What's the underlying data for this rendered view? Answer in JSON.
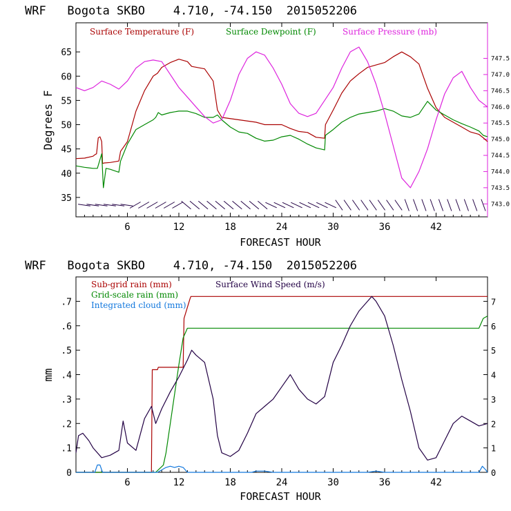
{
  "chart_data": [
    {
      "type": "line",
      "title": "WRF   Bogota SKBO    4.710, -74.150  2015052206",
      "xlabel": "FORECAST HOUR",
      "ylabel": "Degrees F",
      "xlim": [
        0,
        48
      ],
      "ylim": [
        31,
        71
      ],
      "y2lim": [
        742.6,
        748.6
      ],
      "xticks": [
        "6",
        "12",
        "18",
        "24",
        "30",
        "36",
        "42"
      ],
      "yticks": [
        "35",
        "40",
        "45",
        "50",
        "55",
        "60",
        "65"
      ],
      "y2ticks": [
        "743.0",
        "743.5",
        "744.0",
        "744.5",
        "745.0",
        "745.5",
        "746.0",
        "746.5",
        "747.0",
        "747.5"
      ],
      "legend": [
        "Surface Temperature (F)",
        "Surface Dewpoint (F)",
        "Surface Pressure (mb)"
      ],
      "series": [
        {
          "name": "Surface Temperature (F)",
          "color": "#aa0000",
          "axis": "left",
          "x": [
            0,
            1,
            2,
            2.2,
            2.4,
            2.6,
            2.8,
            3,
            3.1,
            3.3,
            4,
            5,
            5.2,
            6,
            7,
            8,
            9,
            9.5,
            10,
            11,
            12,
            13,
            13.5,
            15,
            16,
            16.5,
            17,
            19,
            21,
            22,
            24,
            25,
            26,
            27,
            28,
            29,
            29.1,
            30,
            31,
            32,
            33,
            34,
            35,
            36,
            37,
            38,
            39,
            40,
            41,
            42,
            43,
            44,
            45,
            46,
            47,
            47.5,
            48
          ],
          "values": [
            43,
            43.1,
            43.5,
            43.8,
            44,
            47.3,
            47.5,
            46.5,
            42,
            42.1,
            42.2,
            42.5,
            44.5,
            46.5,
            52.8,
            57,
            60,
            60.6,
            61.8,
            62.8,
            63.5,
            63,
            62,
            61.5,
            59,
            53,
            51.5,
            51,
            50.5,
            50,
            50,
            49.2,
            48.6,
            48.4,
            47.4,
            47.2,
            50,
            53,
            56.5,
            59,
            60.5,
            61.8,
            62.3,
            62.8,
            64,
            65,
            64,
            62.5,
            57.5,
            53.5,
            51.5,
            50.5,
            49.5,
            48.5,
            48,
            47.3,
            46.5
          ]
        },
        {
          "name": "Surface Dewpoint (F)",
          "color": "#008800",
          "axis": "left",
          "x": [
            0,
            1,
            2,
            2.5,
            3,
            3.2,
            3.5,
            4,
            5,
            5.2,
            6,
            7,
            8,
            9,
            9.3,
            9.6,
            10,
            11,
            12,
            13,
            14,
            15,
            16,
            16.5,
            17,
            18,
            19,
            20,
            21,
            22,
            23,
            24,
            25,
            26,
            27,
            28,
            29,
            29.1,
            30,
            31,
            32,
            33,
            34,
            35,
            36,
            37,
            38,
            39,
            40,
            41,
            42,
            43,
            44,
            45,
            46,
            47,
            47.5,
            48
          ],
          "values": [
            41.5,
            41.2,
            41,
            41,
            44,
            37,
            41,
            40.8,
            40.2,
            42.5,
            46,
            49,
            50,
            51,
            51.5,
            52.5,
            52,
            52.5,
            52.8,
            52.8,
            52.3,
            51.5,
            51.5,
            52,
            51,
            49.5,
            48.5,
            48.2,
            47.2,
            46.6,
            46.8,
            47.5,
            47.8,
            47,
            46,
            45.2,
            44.8,
            47.8,
            49,
            50.5,
            51.5,
            52.2,
            52.5,
            52.8,
            53.3,
            52.8,
            51.8,
            51.5,
            52.2,
            54.8,
            53,
            52,
            51,
            50.2,
            49.5,
            48.7,
            47.8,
            47.5
          ]
        },
        {
          "name": "Surface Pressure (mb)",
          "color": "#dd22dd",
          "axis": "right",
          "x": [
            0,
            1,
            2,
            3,
            4,
            5,
            6,
            7,
            8,
            9,
            10,
            11,
            12,
            13,
            14,
            15,
            16,
            17,
            18,
            19,
            20,
            21,
            22,
            23,
            24,
            25,
            26,
            27,
            28,
            29,
            30,
            31,
            32,
            33,
            34,
            35,
            36,
            37,
            38,
            39,
            40,
            41,
            42,
            43,
            44,
            45,
            46,
            47,
            48
          ],
          "values": [
            746.6,
            746.5,
            746.6,
            746.8,
            746.7,
            746.55,
            746.8,
            747.2,
            747.4,
            747.45,
            747.4,
            747.0,
            746.6,
            746.3,
            746.0,
            745.7,
            745.5,
            745.6,
            746.2,
            747.0,
            747.5,
            747.7,
            747.6,
            747.2,
            746.7,
            746.1,
            745.8,
            745.7,
            745.8,
            746.2,
            746.6,
            747.2,
            747.7,
            747.85,
            747.4,
            746.7,
            745.8,
            744.8,
            743.8,
            743.5,
            744.0,
            744.7,
            745.6,
            746.4,
            746.9,
            747.1,
            746.6,
            746.2,
            746.0
          ]
        }
      ],
      "wind_barbs": "wind barbs along bottom of panel"
    },
    {
      "type": "line",
      "title": "WRF   Bogota SKBO    4.710, -74.150  2015052206",
      "xlabel": "FORECAST HOUR",
      "ylabel": "mm",
      "xlim": [
        0,
        48
      ],
      "ylim": [
        0,
        0.8
      ],
      "y2lim": [
        0,
        8
      ],
      "xticks": [
        "6",
        "12",
        "18",
        "24",
        "30",
        "36",
        "42"
      ],
      "yticks": [
        "0",
        ".1",
        ".2",
        ".3",
        ".4",
        ".5",
        ".6",
        ".7"
      ],
      "y2ticks": [
        "0",
        "1",
        "2",
        "3",
        "4",
        "5",
        "6",
        "7"
      ],
      "legend": [
        "Sub-grid rain (mm)",
        "Grid-scale rain (mm)",
        "Integrated cloud (mm)",
        "Surface Wind Speed (m/s)"
      ],
      "series": [
        {
          "name": "Sub-grid rain (mm)",
          "color": "#aa0000",
          "axis": "left",
          "x": [
            0,
            8.8,
            8.9,
            9.5,
            9.6,
            12.5,
            12.6,
            13.3,
            13.4,
            48
          ],
          "values": [
            0,
            0,
            0.42,
            0.42,
            0.43,
            0.43,
            0.63,
            0.71,
            0.72,
            0.72
          ]
        },
        {
          "name": "Grid-scale rain (mm)",
          "color": "#008800",
          "axis": "left",
          "x": [
            0,
            9.3,
            10.2,
            10.5,
            11,
            11.5,
            12,
            12.5,
            13,
            47,
            47.5,
            48
          ],
          "values": [
            0,
            0,
            0.03,
            0.08,
            0.2,
            0.32,
            0.44,
            0.55,
            0.59,
            0.59,
            0.63,
            0.64
          ]
        },
        {
          "name": "Integrated cloud (mm)",
          "color": "#1177dd",
          "axis": "left",
          "x": [
            0,
            2.2,
            2.5,
            2.8,
            3.1,
            9.5,
            10,
            10.5,
            11,
            11.5,
            12,
            12.5,
            13,
            20.5,
            21,
            22,
            23,
            34,
            35,
            36,
            47,
            47.4,
            47.8,
            48
          ],
          "values": [
            0,
            0,
            0.03,
            0.03,
            0,
            0,
            0.01,
            0.02,
            0.025,
            0.02,
            0.025,
            0.02,
            0,
            0,
            0.005,
            0.005,
            0,
            0,
            0.005,
            0,
            0,
            0.025,
            0.01,
            0
          ]
        },
        {
          "name": "Surface Wind Speed (m/s)",
          "color": "#220044",
          "axis": "right",
          "x": [
            0,
            0.3,
            0.8,
            1.5,
            2,
            3,
            4,
            5,
            5.5,
            6,
            7,
            8,
            8.8,
            9.3,
            10,
            11,
            12,
            13,
            13.5,
            14,
            15,
            16,
            16.5,
            17,
            18,
            19,
            20,
            21,
            22,
            23,
            24,
            25,
            26,
            27,
            28,
            29,
            30,
            31,
            32,
            33,
            34,
            34.5,
            35,
            36,
            37,
            38,
            39,
            40,
            41,
            42,
            43,
            44,
            45,
            45.5,
            46,
            47,
            48
          ],
          "values": [
            0.8,
            1.5,
            1.6,
            1.3,
            1,
            0.6,
            0.7,
            0.9,
            2.1,
            1.2,
            0.9,
            2.2,
            2.7,
            2.0,
            2.6,
            3.3,
            3.9,
            4.6,
            5.0,
            4.8,
            4.5,
            3,
            1.5,
            0.8,
            0.65,
            0.9,
            1.6,
            2.4,
            2.7,
            3.0,
            3.5,
            4.0,
            3.4,
            3.0,
            2.8,
            3.1,
            4.5,
            5.2,
            6.0,
            6.6,
            7.0,
            7.2,
            7.0,
            6.4,
            5.2,
            3.8,
            2.5,
            1.0,
            0.5,
            0.6,
            1.3,
            2.0,
            2.3,
            2.2,
            2.1,
            1.9,
            2.0
          ]
        }
      ]
    }
  ]
}
